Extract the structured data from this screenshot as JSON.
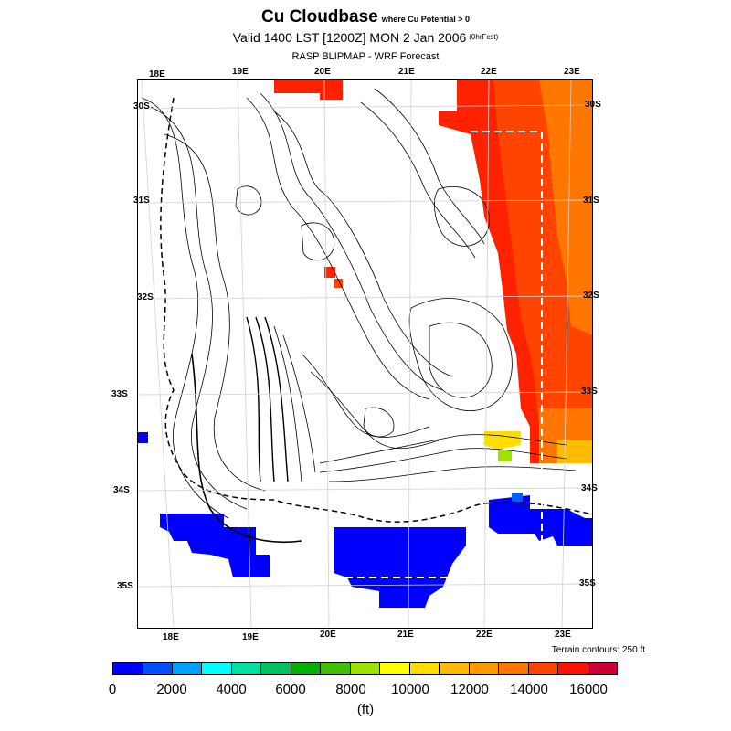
{
  "title": "Cu Cloudbase",
  "title_note": "where Cu Potential > 0",
  "valid": "Valid 1400 LST [1200Z] MON 2 Jan 2006",
  "valid_note": "(0hrFcst)",
  "subtitle": "RASP BLIPMAP - WRF Forecast",
  "terrain_note": "Terrain contours: 250 ft",
  "unit_label": "(ft)",
  "top_lon_labels": [
    "18E",
    "19E",
    "20E",
    "21E",
    "22E",
    "23E"
  ],
  "bottom_lon_labels": [
    "18E",
    "19E",
    "20E",
    "21E",
    "22E",
    "23E"
  ],
  "left_lat_labels": [
    "30S",
    "31S",
    "32S",
    "33S",
    "34S",
    "35S"
  ],
  "right_lat_labels": [
    "30S",
    "31S",
    "32S",
    "33S",
    "34S",
    "35S"
  ],
  "colorbar": {
    "colors": [
      "#0000ff",
      "#0050ff",
      "#00a0ff",
      "#00ffff",
      "#00e0a0",
      "#00c060",
      "#00b000",
      "#40c000",
      "#a0e000",
      "#ffff00",
      "#ffdd00",
      "#ffbb00",
      "#ff9900",
      "#ff7700",
      "#ff4400",
      "#ff1100",
      "#cc0033"
    ],
    "tick_labels": [
      "0",
      "2000",
      "4000",
      "6000",
      "8000",
      "10000",
      "12000",
      "14000",
      "16000"
    ]
  },
  "map": {
    "land_color": "#ffffff",
    "contour_color": "#000000",
    "low_cloudbase_color": "#0000ff",
    "high_cloudbase_color": "#ff2200",
    "east_gradient": [
      "#ff2200",
      "#ff4400",
      "#ff7700",
      "#ff9900"
    ]
  }
}
